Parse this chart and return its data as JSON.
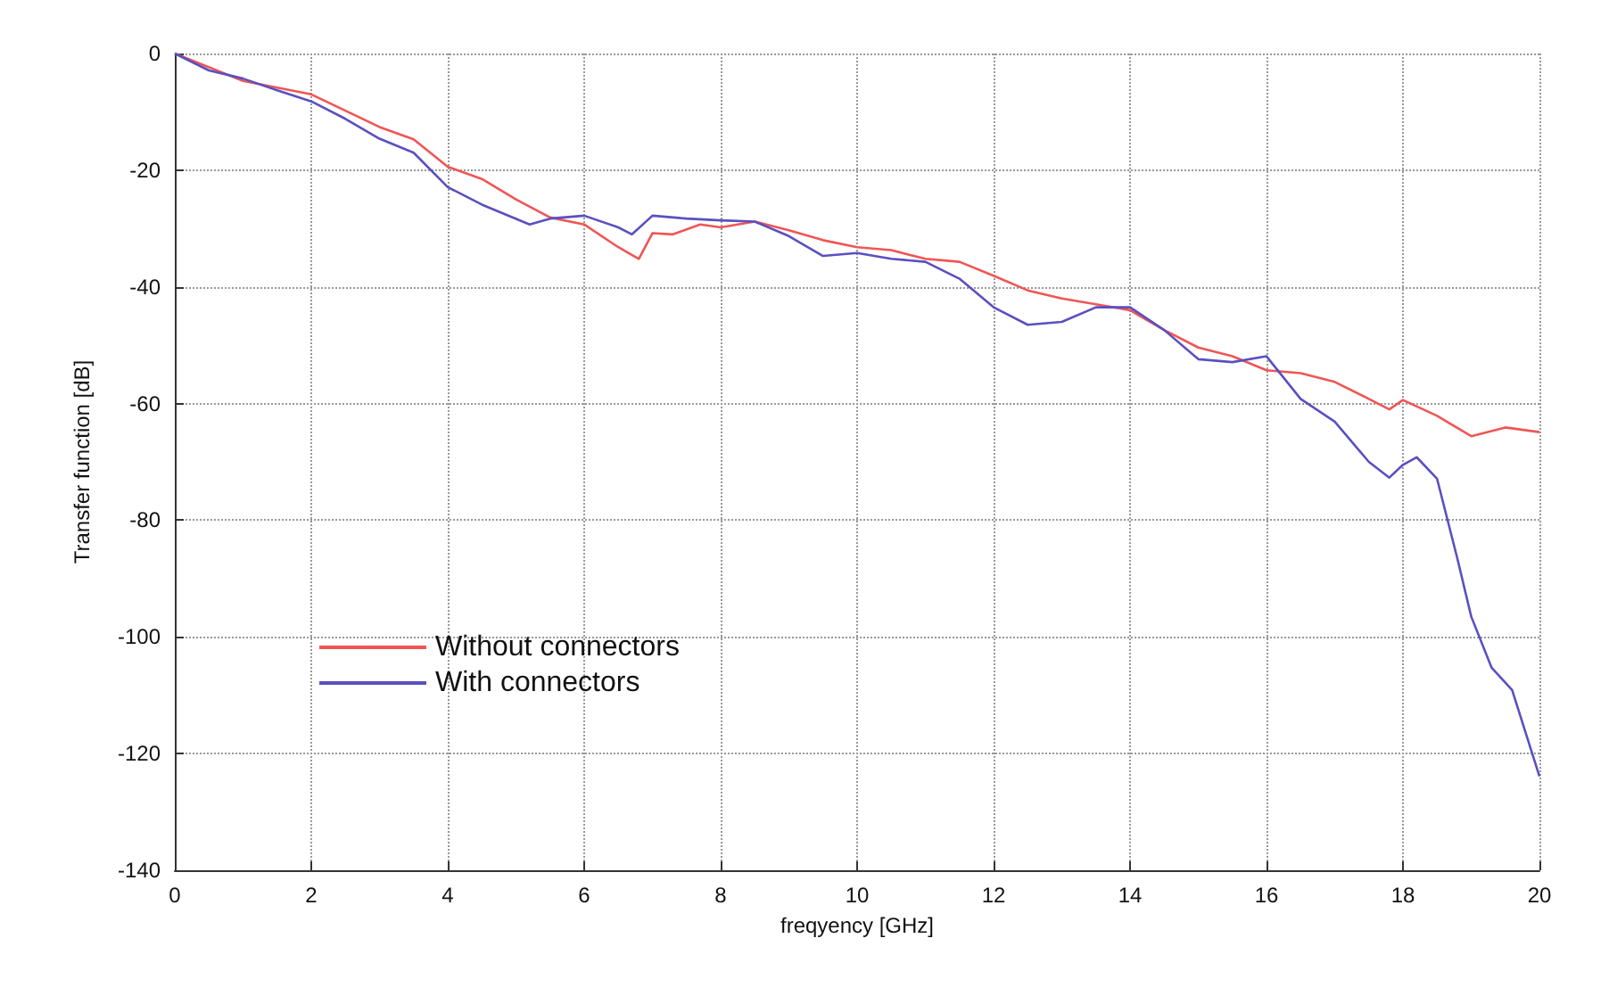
{
  "chart_data": {
    "type": "line",
    "xlabel": "freqyency [GHz]",
    "ylabel": "Transfer function [dB]",
    "xlim": [
      0,
      20
    ],
    "xticks": [
      0,
      2,
      4,
      6,
      8,
      10,
      12,
      14,
      16,
      18,
      20
    ],
    "ylim": [
      -140,
      0
    ],
    "yticks": [
      -140,
      -120,
      -100,
      -80,
      -60,
      -40,
      -20,
      0
    ],
    "grid": true,
    "legend": "left",
    "marker": "none",
    "line_style": "solid",
    "series": [
      {
        "name": "Without connectors",
        "color": "#f05555",
        "x": [
          0,
          1,
          2,
          3,
          3.5,
          4,
          4.5,
          5,
          5.5,
          6,
          6.5,
          6.8,
          7,
          7.3,
          7.7,
          8,
          8.5,
          9,
          9.5,
          10,
          10.5,
          11,
          11.5,
          12,
          12.5,
          13,
          13.5,
          14,
          14.5,
          15,
          15.5,
          16,
          16.5,
          17,
          17.5,
          17.8,
          18,
          18.5,
          19,
          19.5,
          20
        ],
        "values": [
          0,
          -4.7,
          -7,
          -12.6,
          -14.7,
          -19.4,
          -21.5,
          -25,
          -28.1,
          -29.3,
          -33.2,
          -35.2,
          -30.8,
          -31,
          -29.3,
          -29.8,
          -28.8,
          -30.3,
          -32,
          -33.2,
          -33.7,
          -35.2,
          -35.7,
          -38.1,
          -40.6,
          -42,
          -43,
          -44,
          -47.4,
          -50.4,
          -51.9,
          -54.3,
          -54.8,
          -56.3,
          -59.2,
          -61,
          -59.4,
          -62.1,
          -65.6,
          -64.1,
          -64.9
        ]
      },
      {
        "name": "With connectors",
        "color": "#5a50c0",
        "x": [
          0,
          0.5,
          1,
          1.5,
          2,
          2.5,
          3,
          3.5,
          4,
          4.5,
          5.2,
          5.5,
          6,
          6.5,
          6.7,
          7,
          7.5,
          8,
          8.5,
          9,
          9.5,
          10,
          10.5,
          11,
          11.5,
          12,
          12.5,
          13,
          13.5,
          14,
          14.5,
          15,
          15.5,
          16,
          16.5,
          17,
          17.5,
          17.8,
          18,
          18.2,
          18.5,
          18.8,
          19,
          19.3,
          19.6,
          20
        ],
        "values": [
          0,
          -2.9,
          -4.3,
          -6.3,
          -8.2,
          -11.2,
          -14.6,
          -17,
          -22.9,
          -25.9,
          -29.3,
          -28.3,
          -27.8,
          -29.8,
          -31,
          -27.8,
          -28.3,
          -28.6,
          -28.8,
          -31.3,
          -34.7,
          -34.2,
          -35.2,
          -35.7,
          -38.6,
          -43.5,
          -46.5,
          -46,
          -43.5,
          -43.5,
          -47.4,
          -52.4,
          -52.9,
          -51.9,
          -59.2,
          -63.1,
          -70,
          -72.7,
          -70.5,
          -69.2,
          -72.9,
          -86.7,
          -96.5,
          -105.3,
          -109.1,
          -123.9
        ]
      }
    ]
  }
}
